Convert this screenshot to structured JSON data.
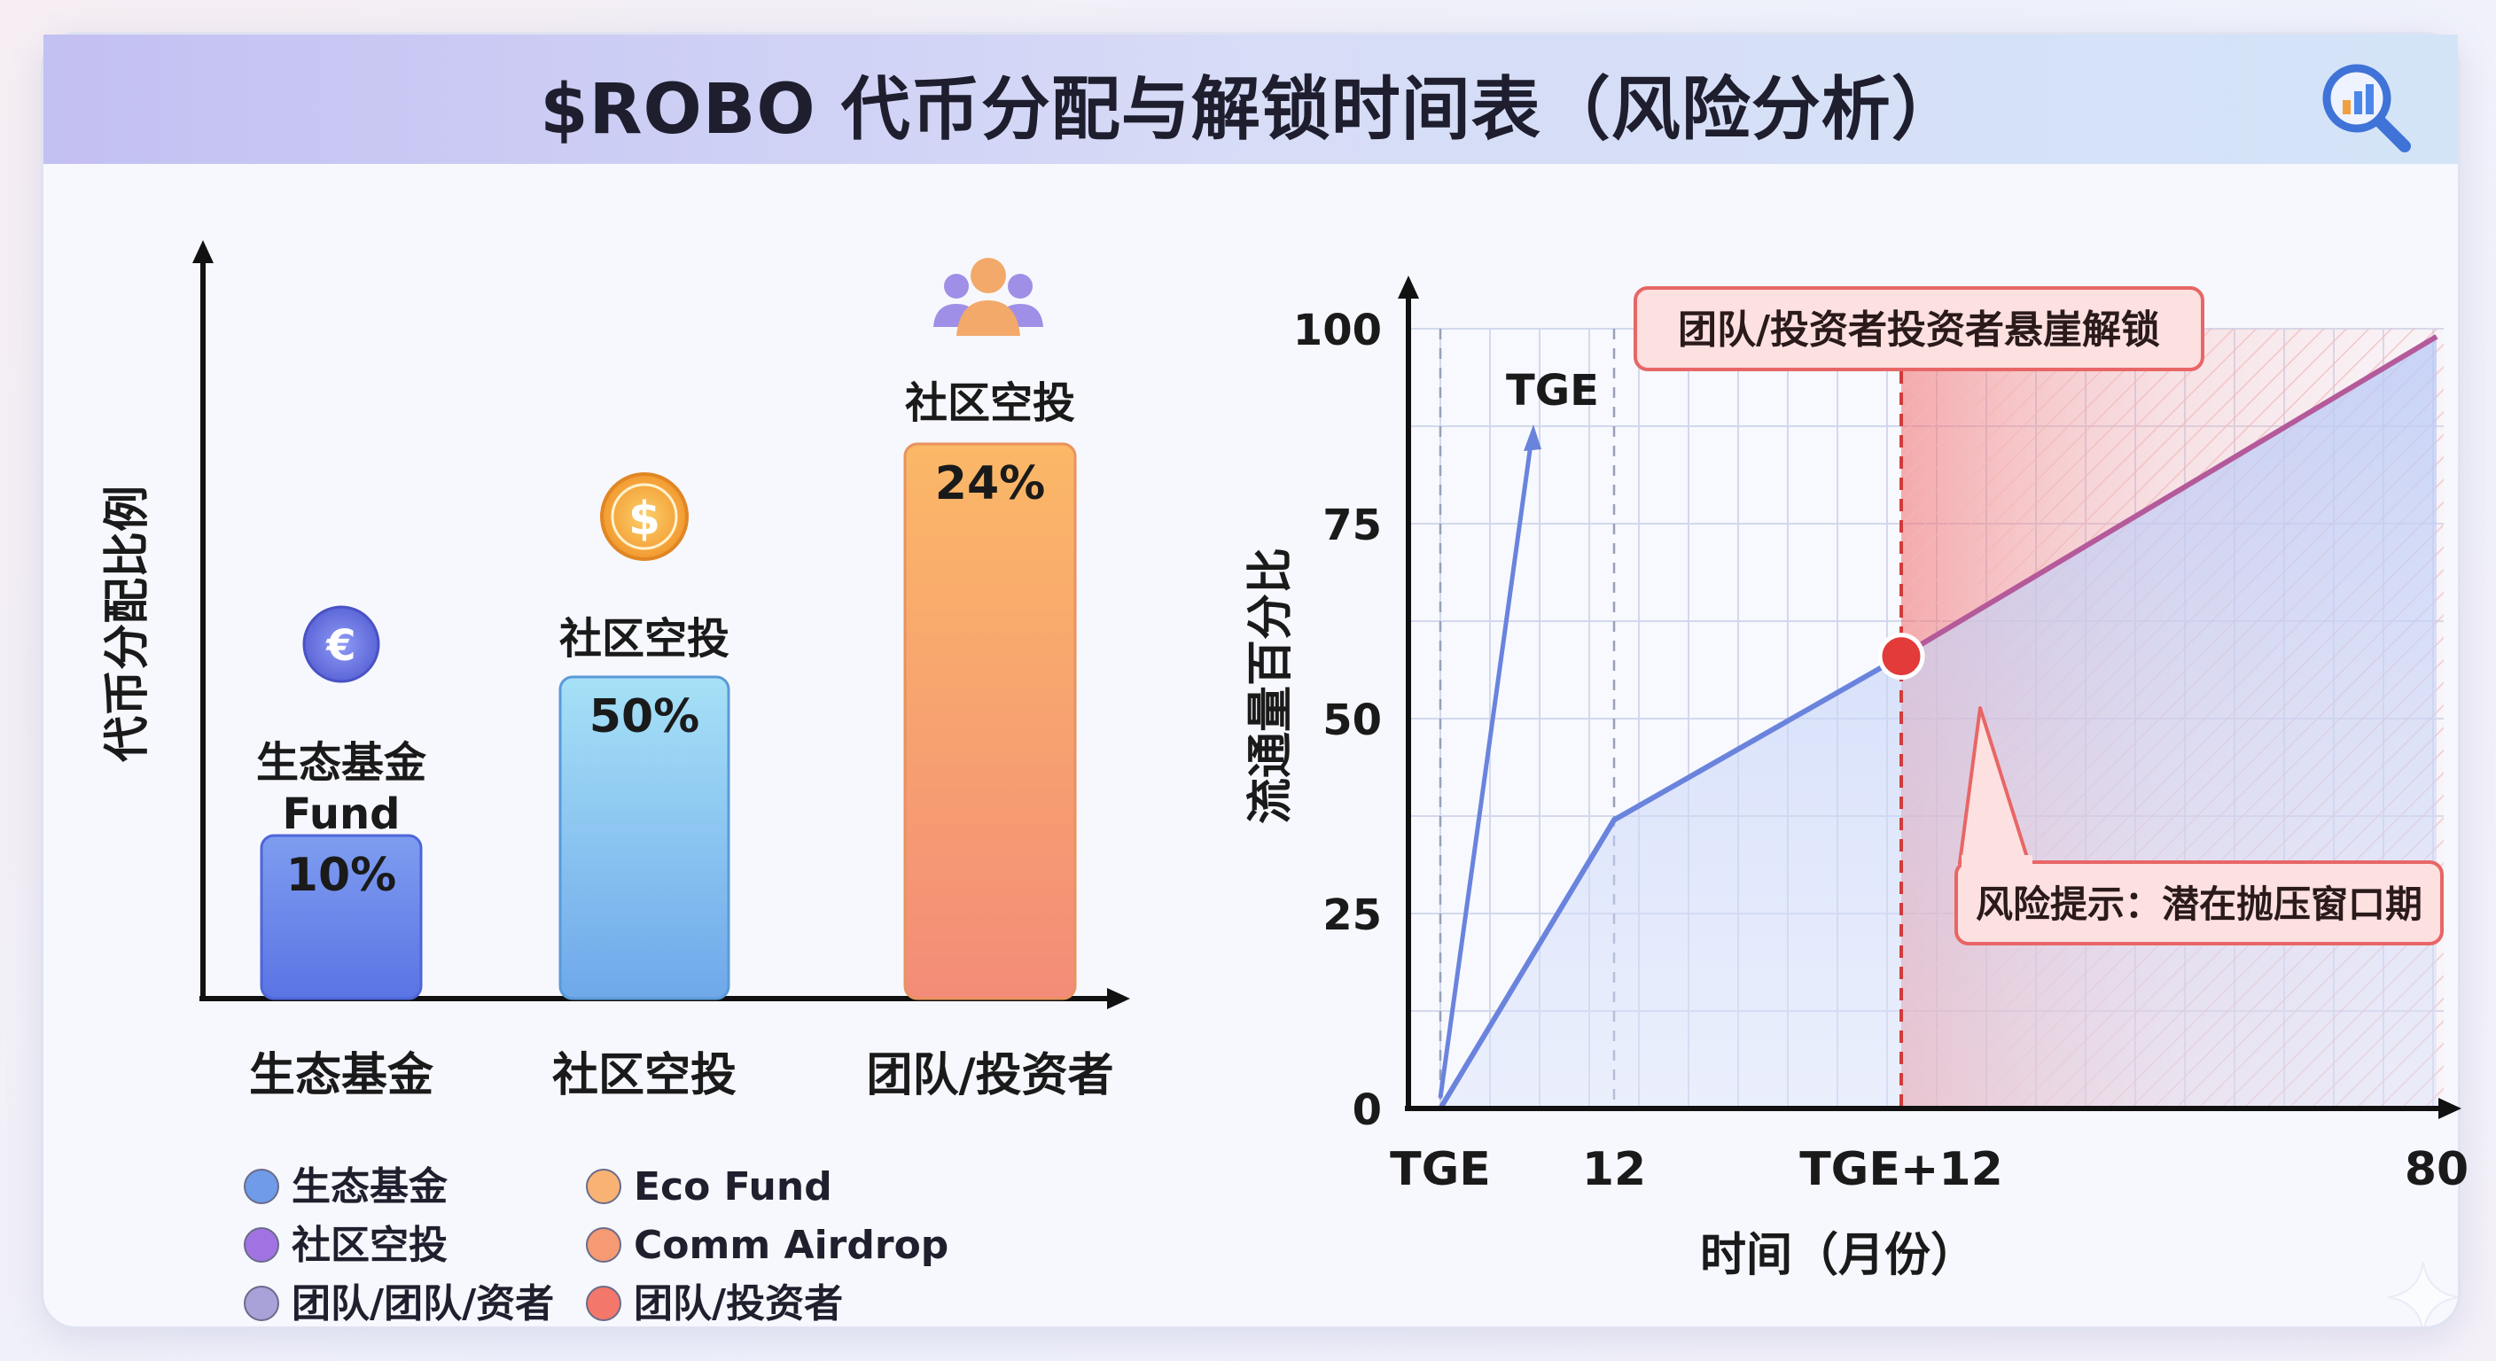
{
  "title": "$ROBO 代币分配与解锁时间表（风险分析）",
  "icons": {
    "header": "magnifier-chart-icon",
    "eco": "euro-coin-icon",
    "airdrop": "dollar-coin-icon",
    "team": "people-group-icon",
    "corner": "sparkle-icon"
  },
  "colors": {
    "eco": "#6e86ea",
    "airdrop": "#7fc6ef",
    "team": "#f7a06a",
    "line": "#6a83dd",
    "risk": "#ef5f5f"
  },
  "chart_data": [
    {
      "type": "bar",
      "ylabel": "代币分配比例",
      "categories": [
        "生态基金",
        "社区空投",
        "团队/投资者"
      ],
      "values": [
        10,
        50,
        24
      ],
      "value_labels": [
        "10%",
        "50%",
        "24%"
      ],
      "bar_labels": [
        [
          "生态基金",
          "Fund"
        ],
        [
          "社区空投"
        ],
        [
          "社区空投"
        ]
      ],
      "legend": [
        {
          "label": "生态基金",
          "color": "#6f9be8"
        },
        {
          "label": "Eco Fund",
          "color": "#f8b274"
        },
        {
          "label": "社区空投",
          "color": "#a173e2"
        },
        {
          "label": "Comm Airdrop",
          "color": "#f59a72"
        },
        {
          "label": "团队/团队/资者",
          "color": "#a9a2d8"
        },
        {
          "label": "团队/投资者",
          "color": "#f3776a"
        }
      ]
    },
    {
      "type": "line",
      "xlabel": "时间（月份）",
      "ylabel": "流通量百分比",
      "x_ticks": [
        "TGE",
        "12",
        "TGE+12",
        "80"
      ],
      "y_ticks": [
        0,
        25,
        50,
        75,
        100
      ],
      "ylim": [
        0,
        100
      ],
      "series": [
        {
          "points": [
            [
              "TGE",
              0
            ],
            [
              "12",
              37
            ],
            [
              "TGE+12",
              58
            ],
            [
              "80",
              99
            ]
          ]
        }
      ],
      "tge_arrow_label": "TGE",
      "cliff_label": "团队/投资者投资者悬崖解锁",
      "risk_label": "风险提示：潜在抛压窗口期",
      "cliff_x": "TGE+12"
    }
  ]
}
